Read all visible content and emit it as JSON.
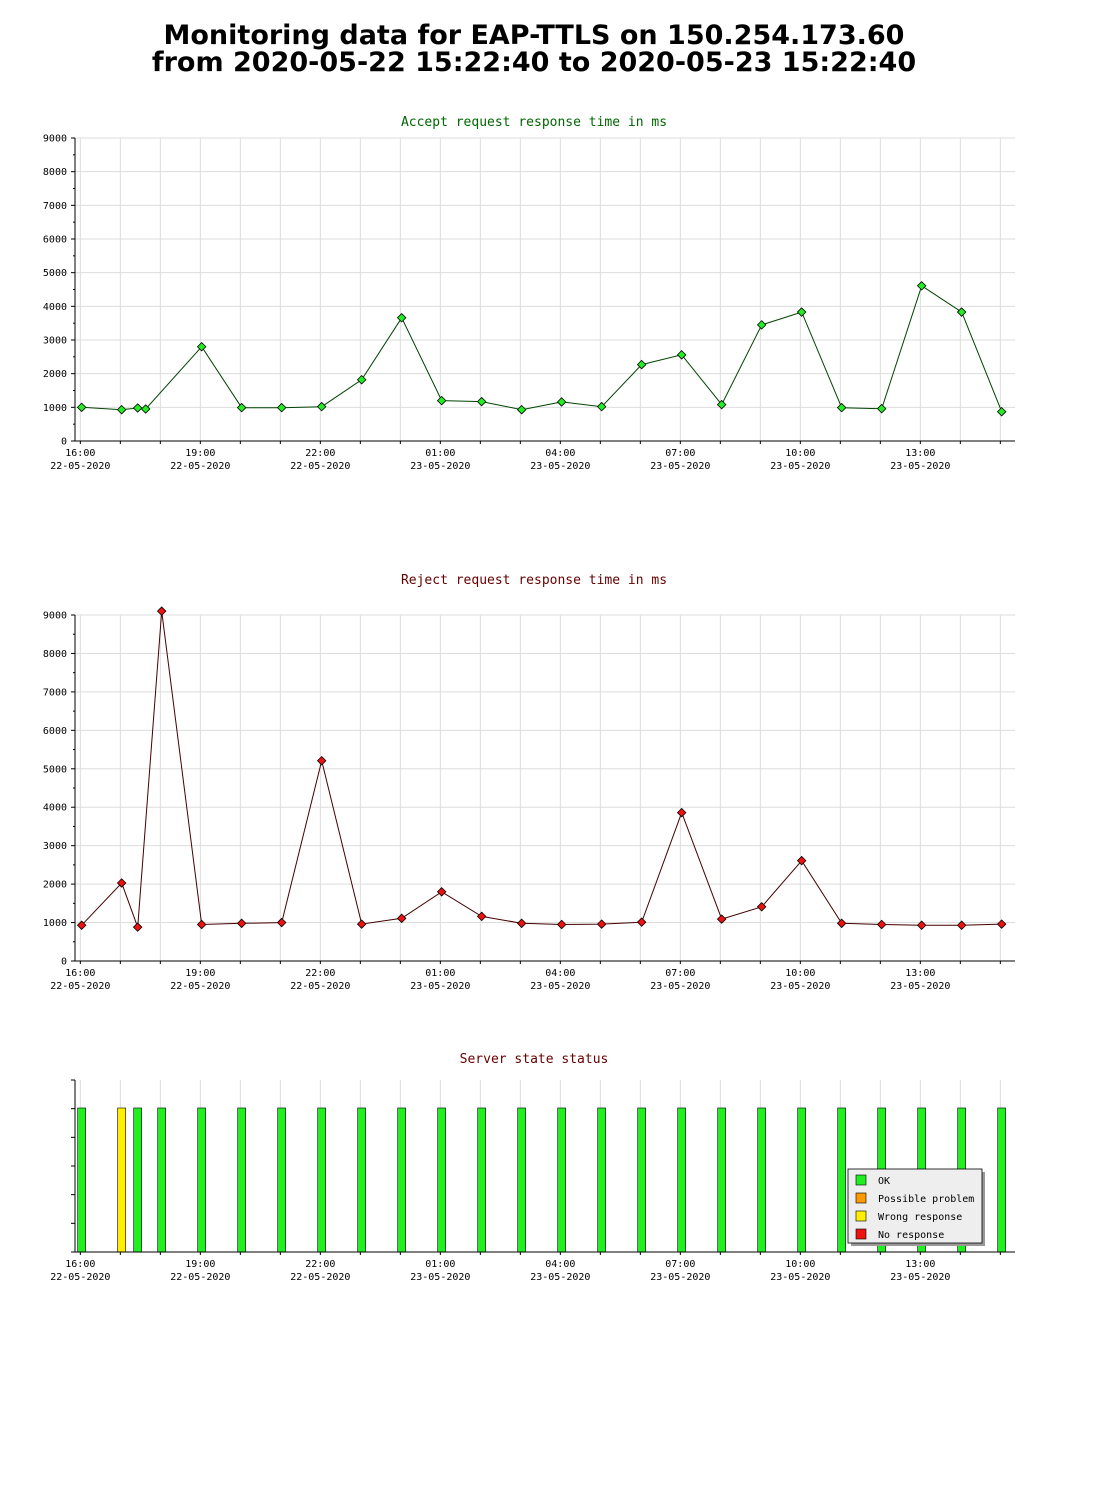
{
  "page": {
    "title_line1": "Monitoring data for EAP-TTLS on 150.254.173.60",
    "title_line2": "from 2020-05-22 15:22:40 to 2020-05-23 15:22:40"
  },
  "x_ticks": [
    {
      "time": "16:00",
      "date": "22-05-2020"
    },
    {
      "time": "19:00",
      "date": "22-05-2020"
    },
    {
      "time": "22:00",
      "date": "22-05-2020"
    },
    {
      "time": "01:00",
      "date": "23-05-2020"
    },
    {
      "time": "04:00",
      "date": "23-05-2020"
    },
    {
      "time": "07:00",
      "date": "23-05-2020"
    },
    {
      "time": "10:00",
      "date": "23-05-2020"
    },
    {
      "time": "13:00",
      "date": "23-05-2020"
    }
  ],
  "chart_data": [
    {
      "type": "line",
      "title": "Accept request response time in ms",
      "title_color": "#006600",
      "line_color": "#004400",
      "marker_color": "#22ee22",
      "grid": true,
      "ylim": [
        0,
        9000
      ],
      "y_ticks": [
        0,
        1000,
        2000,
        3000,
        4000,
        5000,
        6000,
        7000,
        8000,
        9000
      ],
      "xlim": [
        "2020-05-22 15:52",
        "2020-05-23 15:22"
      ],
      "series": [
        {
          "x": [
            "2020-05-22 16:02",
            "2020-05-22 17:02",
            "2020-05-22 17:26",
            "2020-05-22 17:38",
            "2020-05-22 19:02",
            "2020-05-22 20:02",
            "2020-05-22 21:02",
            "2020-05-22 22:02",
            "2020-05-22 23:02",
            "2020-05-23 00:02",
            "2020-05-23 01:02",
            "2020-05-23 02:02",
            "2020-05-23 03:02",
            "2020-05-23 04:02",
            "2020-05-23 05:02",
            "2020-05-23 06:02",
            "2020-05-23 07:02",
            "2020-05-23 08:02",
            "2020-05-23 09:02",
            "2020-05-23 10:02",
            "2020-05-23 11:02",
            "2020-05-23 12:02",
            "2020-05-23 13:02",
            "2020-05-23 14:02",
            "2020-05-23 15:02"
          ],
          "values": [
            1000,
            930,
            980,
            950,
            2800,
            990,
            990,
            1020,
            1820,
            3660,
            1200,
            1170,
            930,
            1160,
            1020,
            2270,
            2560,
            1080,
            3450,
            3830,
            990,
            960,
            4610,
            3830,
            870
          ]
        }
      ]
    },
    {
      "type": "line",
      "title": "Reject request response time in ms",
      "title_color": "#660000",
      "line_color": "#440000",
      "marker_color": "#ee1111",
      "grid": true,
      "ylim": [
        0,
        9000
      ],
      "y_ticks": [
        0,
        1000,
        2000,
        3000,
        4000,
        5000,
        6000,
        7000,
        8000,
        9000
      ],
      "xlim": [
        "2020-05-22 15:52",
        "2020-05-23 15:22"
      ],
      "series": [
        {
          "x": [
            "2020-05-22 16:02",
            "2020-05-22 17:02",
            "2020-05-22 17:26",
            "2020-05-22 18:02",
            "2020-05-22 19:02",
            "2020-05-22 20:02",
            "2020-05-22 21:02",
            "2020-05-22 22:02",
            "2020-05-22 23:02",
            "2020-05-23 00:02",
            "2020-05-23 01:02",
            "2020-05-23 02:02",
            "2020-05-23 03:02",
            "2020-05-23 04:02",
            "2020-05-23 05:02",
            "2020-05-23 06:02",
            "2020-05-23 07:02",
            "2020-05-23 08:02",
            "2020-05-23 09:02",
            "2020-05-23 10:02",
            "2020-05-23 11:02",
            "2020-05-23 12:02",
            "2020-05-23 13:02",
            "2020-05-23 14:02",
            "2020-05-23 15:02"
          ],
          "values": [
            930,
            2030,
            880,
            9100,
            950,
            980,
            1000,
            5210,
            960,
            1110,
            1800,
            1160,
            980,
            950,
            960,
            1010,
            3860,
            1090,
            1410,
            2610,
            980,
            950,
            930,
            930,
            960
          ]
        }
      ]
    },
    {
      "type": "bar",
      "title": "Server state status",
      "title_color": "#660000",
      "grid": true,
      "xlim": [
        "2020-05-22 15:52",
        "2020-05-23 15:22"
      ],
      "states": [
        {
          "time": "2020-05-22 16:02",
          "state": "OK"
        },
        {
          "time": "2020-05-22 17:02",
          "state": "Wrong response"
        },
        {
          "time": "2020-05-22 17:26",
          "state": "OK"
        },
        {
          "time": "2020-05-22 18:02",
          "state": "OK"
        },
        {
          "time": "2020-05-22 19:02",
          "state": "OK"
        },
        {
          "time": "2020-05-22 20:02",
          "state": "OK"
        },
        {
          "time": "2020-05-22 21:02",
          "state": "OK"
        },
        {
          "time": "2020-05-22 22:02",
          "state": "OK"
        },
        {
          "time": "2020-05-22 23:02",
          "state": "OK"
        },
        {
          "time": "2020-05-23 00:02",
          "state": "OK"
        },
        {
          "time": "2020-05-23 01:02",
          "state": "OK"
        },
        {
          "time": "2020-05-23 02:02",
          "state": "OK"
        },
        {
          "time": "2020-05-23 03:02",
          "state": "OK"
        },
        {
          "time": "2020-05-23 04:02",
          "state": "OK"
        },
        {
          "time": "2020-05-23 05:02",
          "state": "OK"
        },
        {
          "time": "2020-05-23 06:02",
          "state": "OK"
        },
        {
          "time": "2020-05-23 07:02",
          "state": "OK"
        },
        {
          "time": "2020-05-23 08:02",
          "state": "OK"
        },
        {
          "time": "2020-05-23 09:02",
          "state": "OK"
        },
        {
          "time": "2020-05-23 10:02",
          "state": "OK"
        },
        {
          "time": "2020-05-23 11:02",
          "state": "OK"
        },
        {
          "time": "2020-05-23 12:02",
          "state": "OK"
        },
        {
          "time": "2020-05-23 13:02",
          "state": "OK"
        },
        {
          "time": "2020-05-23 14:02",
          "state": "OK"
        },
        {
          "time": "2020-05-23 15:02",
          "state": "OK"
        }
      ],
      "legend_position": "bottom-right",
      "legend": [
        {
          "label": "OK",
          "color": "#22ee22"
        },
        {
          "label": "Possible problem",
          "color": "#ff9900"
        },
        {
          "label": "Wrong response",
          "color": "#ffee00"
        },
        {
          "label": "No response",
          "color": "#ee1111"
        }
      ]
    }
  ]
}
